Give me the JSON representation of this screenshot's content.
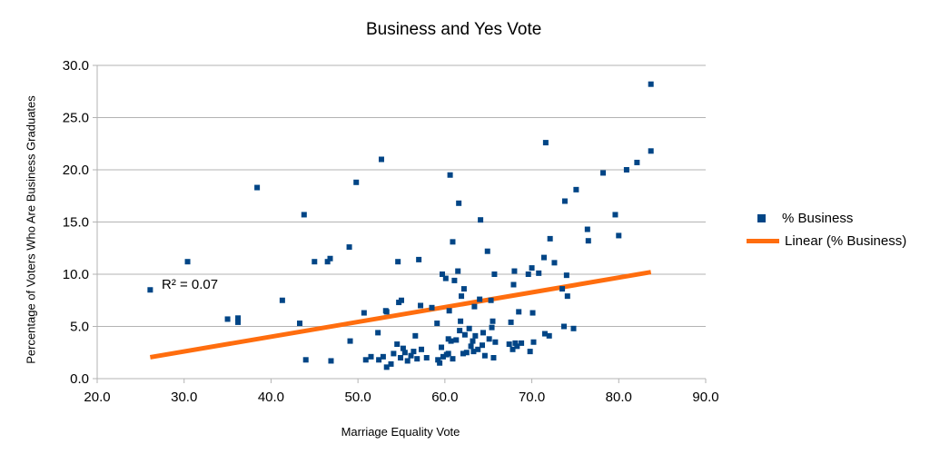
{
  "chart_data": {
    "type": "scatter",
    "title": "Business and Yes Vote",
    "xlabel": "Marriage Equality Vote",
    "ylabel": "Percentage of Voters Who Are Business Graduates",
    "xlim": [
      20,
      90
    ],
    "ylim": [
      0,
      30
    ],
    "x_ticks": [
      "20.0",
      "30.0",
      "40.0",
      "50.0",
      "60.0",
      "70.0",
      "80.0",
      "90.0"
    ],
    "y_ticks": [
      "0.0",
      "5.0",
      "10.0",
      "15.0",
      "20.0",
      "25.0",
      "30.0"
    ],
    "grid": "horizontal",
    "legend_position": "right",
    "annotation": "R² = 0.07",
    "colors": {
      "points": "#004586",
      "trendline": "#ff6d0e",
      "grid": "#b3b3b3"
    },
    "series": [
      {
        "name": "% Business",
        "points": [
          [
            26.1,
            8.5
          ],
          [
            30.4,
            11.2
          ],
          [
            35.0,
            5.7
          ],
          [
            36.2,
            5.8
          ],
          [
            36.2,
            5.4
          ],
          [
            38.4,
            18.3
          ],
          [
            41.3,
            7.5
          ],
          [
            43.3,
            5.3
          ],
          [
            43.8,
            15.7
          ],
          [
            44.0,
            1.8
          ],
          [
            45.0,
            11.2
          ],
          [
            46.5,
            11.2
          ],
          [
            46.8,
            11.5
          ],
          [
            46.9,
            1.7
          ],
          [
            49.0,
            12.6
          ],
          [
            49.1,
            3.6
          ],
          [
            49.8,
            18.8
          ],
          [
            50.7,
            6.3
          ],
          [
            50.9,
            1.8
          ],
          [
            51.5,
            2.1
          ],
          [
            52.3,
            4.4
          ],
          [
            52.4,
            1.8
          ],
          [
            52.7,
            21.0
          ],
          [
            52.9,
            2.1
          ],
          [
            53.2,
            6.5
          ],
          [
            53.3,
            6.4
          ],
          [
            53.3,
            1.1
          ],
          [
            53.8,
            1.4
          ],
          [
            54.1,
            2.4
          ],
          [
            54.5,
            3.3
          ],
          [
            54.6,
            11.2
          ],
          [
            54.7,
            7.3
          ],
          [
            54.9,
            2.0
          ],
          [
            55.0,
            7.5
          ],
          [
            55.2,
            2.9
          ],
          [
            55.4,
            2.5
          ],
          [
            55.7,
            1.7
          ],
          [
            56.1,
            2.2
          ],
          [
            56.4,
            2.6
          ],
          [
            56.6,
            4.1
          ],
          [
            56.8,
            1.9
          ],
          [
            57.0,
            11.4
          ],
          [
            57.2,
            7.0
          ],
          [
            57.3,
            2.8
          ],
          [
            57.9,
            2.0
          ],
          [
            58.5,
            6.8
          ],
          [
            59.1,
            5.3
          ],
          [
            59.2,
            1.8
          ],
          [
            59.4,
            1.5
          ],
          [
            59.6,
            3.0
          ],
          [
            59.7,
            10.0
          ],
          [
            59.8,
            2.1
          ],
          [
            60.1,
            9.6
          ],
          [
            60.2,
            2.3
          ],
          [
            60.4,
            2.4
          ],
          [
            60.4,
            3.8
          ],
          [
            60.5,
            6.5
          ],
          [
            60.6,
            19.5
          ],
          [
            60.7,
            3.6
          ],
          [
            60.9,
            13.1
          ],
          [
            60.9,
            1.9
          ],
          [
            61.1,
            9.4
          ],
          [
            61.3,
            3.7
          ],
          [
            61.5,
            10.3
          ],
          [
            61.6,
            16.8
          ],
          [
            61.7,
            4.6
          ],
          [
            61.8,
            5.5
          ],
          [
            61.9,
            7.9
          ],
          [
            62.1,
            2.4
          ],
          [
            62.2,
            8.6
          ],
          [
            62.3,
            4.2
          ],
          [
            62.5,
            2.5
          ],
          [
            62.8,
            4.8
          ],
          [
            63.0,
            3.1
          ],
          [
            63.2,
            3.6
          ],
          [
            63.3,
            2.6
          ],
          [
            63.4,
            6.9
          ],
          [
            63.5,
            4.1
          ],
          [
            63.8,
            2.8
          ],
          [
            64.0,
            7.6
          ],
          [
            64.1,
            15.2
          ],
          [
            64.3,
            3.2
          ],
          [
            64.4,
            4.4
          ],
          [
            64.6,
            2.2
          ],
          [
            64.9,
            12.2
          ],
          [
            65.1,
            3.8
          ],
          [
            65.3,
            7.5
          ],
          [
            65.4,
            4.9
          ],
          [
            65.5,
            5.5
          ],
          [
            65.6,
            2.0
          ],
          [
            65.7,
            10.0
          ],
          [
            65.8,
            3.5
          ],
          [
            67.4,
            3.3
          ],
          [
            67.6,
            5.4
          ],
          [
            67.8,
            2.8
          ],
          [
            67.9,
            9.0
          ],
          [
            68.0,
            10.3
          ],
          [
            68.1,
            3.4
          ],
          [
            68.3,
            3.1
          ],
          [
            68.5,
            6.4
          ],
          [
            68.8,
            3.4
          ],
          [
            69.6,
            10.0
          ],
          [
            69.8,
            2.6
          ],
          [
            70.0,
            10.6
          ],
          [
            70.1,
            6.3
          ],
          [
            70.2,
            3.5
          ],
          [
            70.8,
            10.1
          ],
          [
            71.4,
            11.6
          ],
          [
            71.5,
            4.3
          ],
          [
            71.6,
            22.6
          ],
          [
            72.0,
            4.1
          ],
          [
            72.1,
            13.4
          ],
          [
            72.6,
            11.1
          ],
          [
            73.5,
            8.6
          ],
          [
            73.7,
            5.0
          ],
          [
            73.8,
            17.0
          ],
          [
            74.0,
            9.9
          ],
          [
            74.1,
            7.9
          ],
          [
            74.8,
            4.8
          ],
          [
            75.1,
            18.1
          ],
          [
            76.4,
            14.3
          ],
          [
            76.5,
            13.2
          ],
          [
            78.2,
            19.7
          ],
          [
            79.6,
            15.7
          ],
          [
            80.0,
            13.7
          ],
          [
            80.9,
            20.0
          ],
          [
            82.1,
            20.7
          ],
          [
            83.7,
            21.8
          ],
          [
            83.7,
            28.2
          ]
        ]
      },
      {
        "name": "Linear (% Business)",
        "type": "line",
        "points": [
          [
            26.1,
            2.05
          ],
          [
            83.7,
            10.2
          ]
        ]
      }
    ]
  }
}
